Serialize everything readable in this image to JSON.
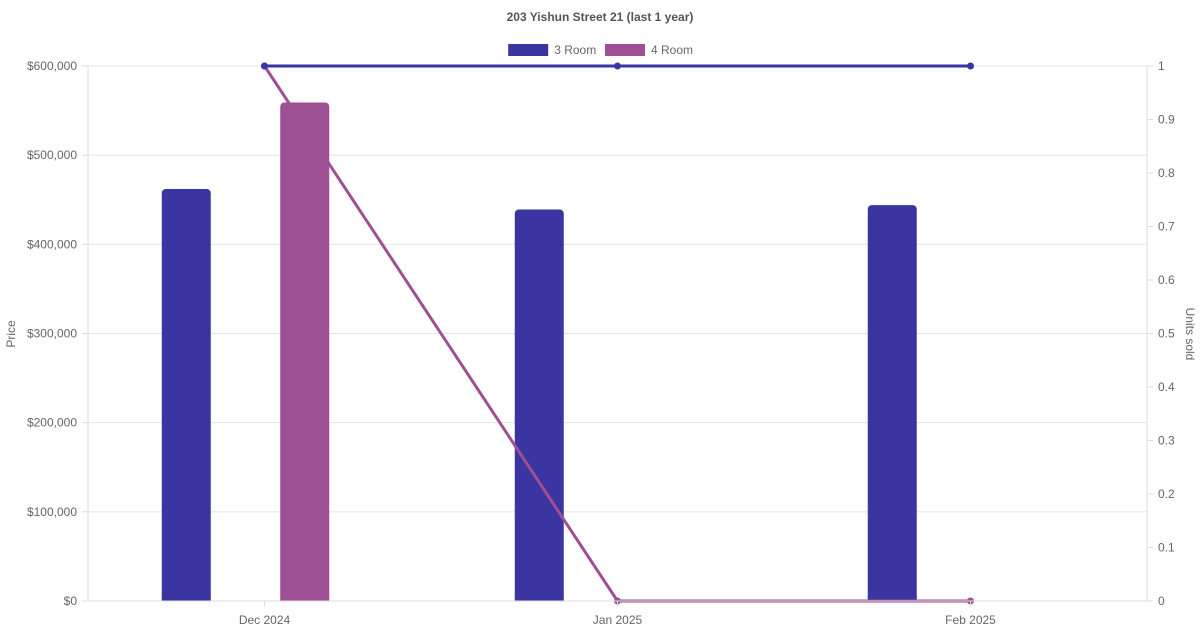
{
  "chart_data": {
    "type": "bar",
    "title": "203 Yishun Street 21 (last 1 year)",
    "categories": [
      "Dec 2024",
      "Jan 2025",
      "Feb 2025"
    ],
    "series": [
      {
        "name": "3 Room",
        "color": "#3a35a0",
        "bar_values": [
          462000,
          439000,
          444000
        ],
        "line_values": [
          1,
          1,
          1
        ]
      },
      {
        "name": "4 Room",
        "color": "#9f4f94",
        "bar_values": [
          559000,
          null,
          null
        ],
        "line_values": [
          1,
          0,
          0
        ]
      }
    ],
    "y_left": {
      "label": "Price",
      "min": 0,
      "max": 600000,
      "ticks": [
        "$0",
        "$100,000",
        "$200,000",
        "$300,000",
        "$400,000",
        "$500,000",
        "$600,000"
      ]
    },
    "y_right": {
      "label": "Units sold",
      "min": 0,
      "max": 1,
      "ticks": [
        "0",
        "0.1",
        "0.2",
        "0.3",
        "0.4",
        "0.5",
        "0.6",
        "0.7",
        "0.8",
        "0.9",
        "1"
      ]
    },
    "legend_position": "top-center",
    "grid": true
  }
}
